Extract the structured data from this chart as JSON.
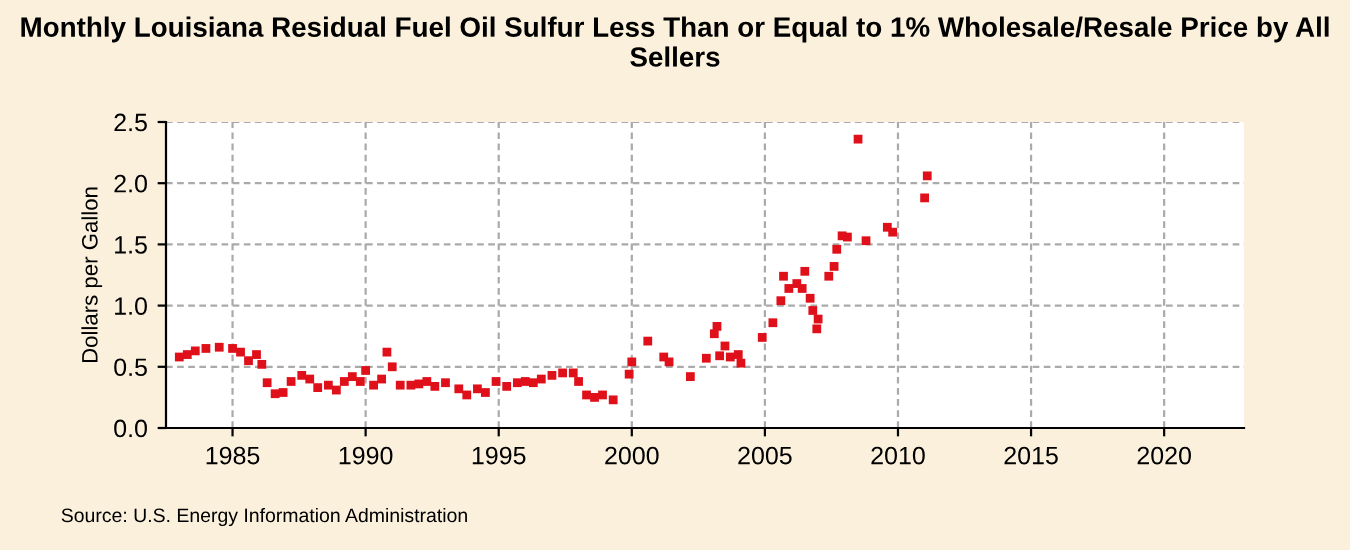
{
  "chart_data": {
    "type": "scatter",
    "title": "Monthly Louisiana Residual Fuel Oil Sulfur Less Than or Equal to 1% Wholesale/Resale Price by All Sellers",
    "ylabel": "Dollars per Gallon",
    "annotations": [
      "Source: U.S. Energy Information Administration"
    ],
    "x": [
      1983.0,
      1983.3,
      1983.6,
      1984.0,
      1984.5,
      1985.0,
      1985.3,
      1985.6,
      1985.9,
      1986.1,
      1986.3,
      1986.6,
      1986.9,
      1987.2,
      1987.6,
      1987.9,
      1988.2,
      1988.6,
      1988.9,
      1989.2,
      1989.5,
      1989.8,
      1990.0,
      1990.3,
      1990.6,
      1990.8,
      1991.0,
      1991.3,
      1991.7,
      1992.0,
      1992.3,
      1992.6,
      1993.0,
      1993.5,
      1993.8,
      1994.2,
      1994.5,
      1994.9,
      1995.3,
      1995.7,
      1996.0,
      1996.3,
      1996.6,
      1997.0,
      1997.4,
      1997.8,
      1998.0,
      1998.3,
      1998.6,
      1998.9,
      1999.3,
      1999.9,
      2000.0,
      2000.6,
      2001.2,
      2001.4,
      2002.2,
      2002.8,
      2003.1,
      2003.2,
      2003.3,
      2003.5,
      2003.7,
      2004.0,
      2004.1,
      2004.9,
      2005.3,
      2005.6,
      2005.7,
      2005.9,
      2006.2,
      2006.4,
      2006.5,
      2006.7,
      2006.8,
      2006.95,
      2007.0,
      2007.4,
      2007.6,
      2007.7,
      2007.9,
      2008.1,
      2008.5,
      2008.8,
      2009.6,
      2009.8,
      2011.0,
      2011.1
    ],
    "series": [
      {
        "color": "#e0101a",
        "values": [
          0.58,
          0.6,
          0.63,
          0.65,
          0.66,
          0.65,
          0.62,
          0.55,
          0.6,
          0.52,
          0.37,
          0.28,
          0.29,
          0.38,
          0.43,
          0.4,
          0.33,
          0.35,
          0.31,
          0.38,
          0.42,
          0.38,
          0.47,
          0.35,
          0.4,
          0.62,
          0.5,
          0.35,
          0.35,
          0.36,
          0.38,
          0.34,
          0.37,
          0.32,
          0.27,
          0.32,
          0.29,
          0.38,
          0.34,
          0.37,
          0.38,
          0.37,
          0.4,
          0.43,
          0.45,
          0.45,
          0.38,
          0.27,
          0.25,
          0.27,
          0.23,
          0.44,
          0.54,
          0.71,
          0.58,
          0.54,
          0.42,
          0.57,
          0.77,
          0.83,
          0.59,
          0.67,
          0.58,
          0.6,
          0.53,
          0.74,
          0.86,
          1.04,
          1.24,
          1.14,
          1.18,
          1.14,
          1.28,
          1.06,
          0.96,
          0.81,
          0.89,
          1.24,
          1.32,
          1.46,
          1.57,
          1.56,
          2.36,
          1.53,
          1.64,
          1.6,
          1.88,
          2.06
        ]
      }
    ],
    "marker": "square",
    "xlim": [
      1982.5,
      2023
    ],
    "xticks": [
      1985,
      1990,
      1995,
      2000,
      2005,
      2010,
      2015,
      2020
    ],
    "ylim": [
      0,
      2.5
    ],
    "yticks": [
      {
        "value": 0,
        "label": "0.0"
      },
      {
        "value": 0.5,
        "label": "0.5"
      },
      {
        "value": 1,
        "label": "1.0"
      },
      {
        "value": 1.5,
        "label": "1.5"
      },
      {
        "value": 2,
        "label": "2.0"
      },
      {
        "value": 2.5,
        "label": "2.5"
      }
    ],
    "grid": true
  }
}
